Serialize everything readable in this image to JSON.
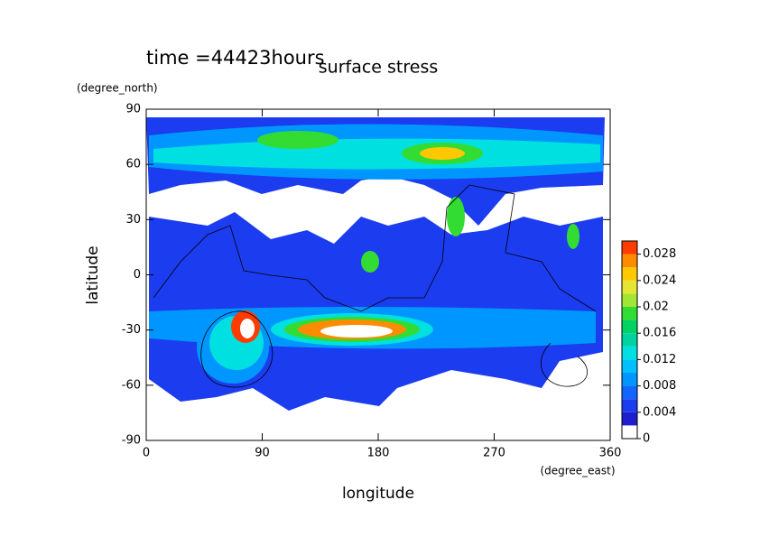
{
  "chart_data": {
    "type": "contour",
    "title": "surface stress",
    "subtitle": "time =44423hours",
    "x_label": "longitude",
    "x_unit": "(degree_east)",
    "y_label": "latitude",
    "y_unit": "(degree_north)",
    "xlim": [
      0,
      360
    ],
    "xticks": [
      0,
      90,
      180,
      270,
      360
    ],
    "ylim": [
      -90,
      90
    ],
    "yticks": [
      -90,
      -60,
      -30,
      0,
      30,
      60,
      90
    ],
    "clim": [
      0,
      0.03
    ],
    "cticks": [
      0,
      0.004,
      0.008,
      0.012,
      0.016,
      0.02,
      0.024,
      0.028
    ],
    "colors": [
      "#ffffff",
      "#1e1ecd",
      "#1c3cf0",
      "#1464ff",
      "#0096ff",
      "#00c0ff",
      "#00e0e0",
      "#00d2a0",
      "#00d264",
      "#32dc32",
      "#a0e632",
      "#e6e632",
      "#ffc800",
      "#ff8c00",
      "#ff3c00"
    ]
  }
}
